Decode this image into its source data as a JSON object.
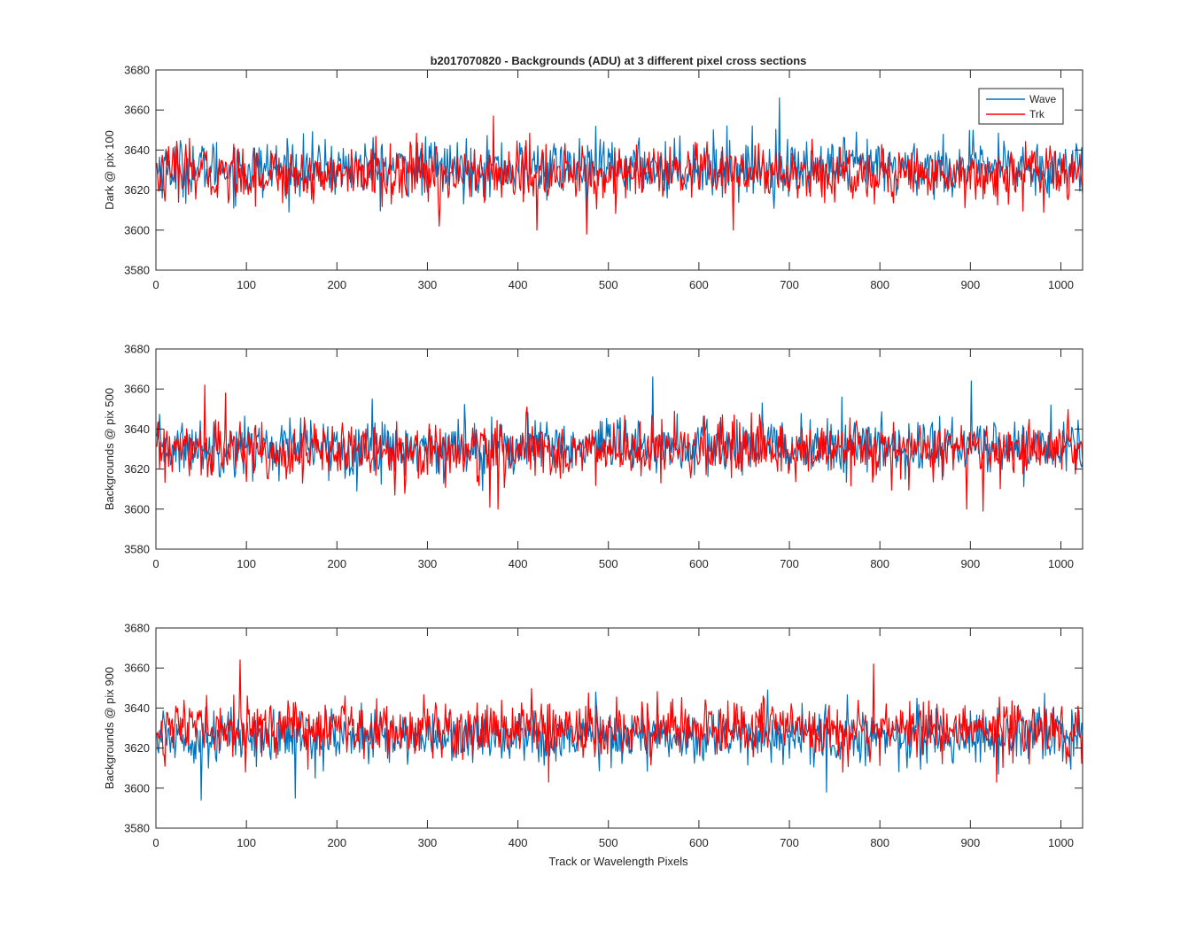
{
  "figure": {
    "title": "b2017070820 - Backgrounds (ADU) at 3 different pixel cross sections",
    "xlabel": "Track or Wavelength Pixels"
  },
  "legend": {
    "entries": [
      "Wave",
      "Trk"
    ],
    "placement": "top-right of top panel"
  },
  "colors": {
    "wave": "#0072BD",
    "trk": "#FF0000",
    "axes": "#262626"
  },
  "chart_data": [
    {
      "type": "line",
      "panel": "top",
      "ylabel": "Dark @ pix 100",
      "xlim": [
        0,
        1024
      ],
      "ylim": [
        3580,
        3680
      ],
      "xticks": [
        0,
        100,
        200,
        300,
        400,
        500,
        600,
        700,
        800,
        900,
        1000
      ],
      "yticks": [
        3580,
        3600,
        3620,
        3640,
        3660,
        3680
      ],
      "series": [
        {
          "name": "Wave",
          "mean": 3631,
          "noise_sd": 7,
          "n_points": 1024,
          "extremes": [
            [
              688,
              3666
            ],
            [
              630,
              3652
            ],
            [
              475,
              3602
            ]
          ]
        },
        {
          "name": "Trk",
          "mean": 3628,
          "noise_sd": 7,
          "n_points": 1024,
          "extremes": [
            [
              372,
              3657
            ],
            [
              312,
              3602
            ],
            [
              475,
              3598
            ],
            [
              637,
              3600
            ],
            [
              420,
              3600
            ]
          ]
        }
      ]
    },
    {
      "type": "line",
      "panel": "middle",
      "ylabel": "Backgrounds @ pix 500",
      "xlim": [
        0,
        1024
      ],
      "ylim": [
        3580,
        3680
      ],
      "xticks": [
        0,
        100,
        200,
        300,
        400,
        500,
        600,
        700,
        800,
        900,
        1000
      ],
      "yticks": [
        3580,
        3600,
        3620,
        3640,
        3660,
        3680
      ],
      "series": [
        {
          "name": "Wave",
          "mean": 3631,
          "noise_sd": 7,
          "n_points": 1024,
          "extremes": [
            [
              548,
              3666
            ],
            [
              900,
              3664
            ],
            [
              757,
              3656
            ],
            [
              238,
              3655
            ]
          ]
        },
        {
          "name": "Trk",
          "mean": 3629,
          "noise_sd": 7,
          "n_points": 1024,
          "extremes": [
            [
              53,
              3662
            ],
            [
              76,
              3658
            ],
            [
              368,
              3601
            ],
            [
              377,
              3600
            ],
            [
              895,
              3600
            ],
            [
              913,
              3599
            ]
          ]
        }
      ]
    },
    {
      "type": "line",
      "panel": "bottom",
      "ylabel": "Backgrounds @ pix 900",
      "xlim": [
        0,
        1024
      ],
      "ylim": [
        3580,
        3680
      ],
      "xticks": [
        0,
        100,
        200,
        300,
        400,
        500,
        600,
        700,
        800,
        900,
        1000
      ],
      "yticks": [
        3580,
        3600,
        3620,
        3640,
        3660,
        3680
      ],
      "series": [
        {
          "name": "Wave",
          "mean": 3626,
          "noise_sd": 6.5,
          "n_points": 1024,
          "extremes": [
            [
              49,
              3594
            ],
            [
              153,
              3595
            ],
            [
              740,
              3598
            ],
            [
              675,
              3649
            ]
          ]
        },
        {
          "name": "Trk",
          "mean": 3630,
          "noise_sd": 7,
          "n_points": 1024,
          "extremes": [
            [
              92,
              3664
            ],
            [
              792,
              3662
            ],
            [
              433,
              3603
            ],
            [
              928,
              3603
            ]
          ]
        }
      ]
    }
  ]
}
